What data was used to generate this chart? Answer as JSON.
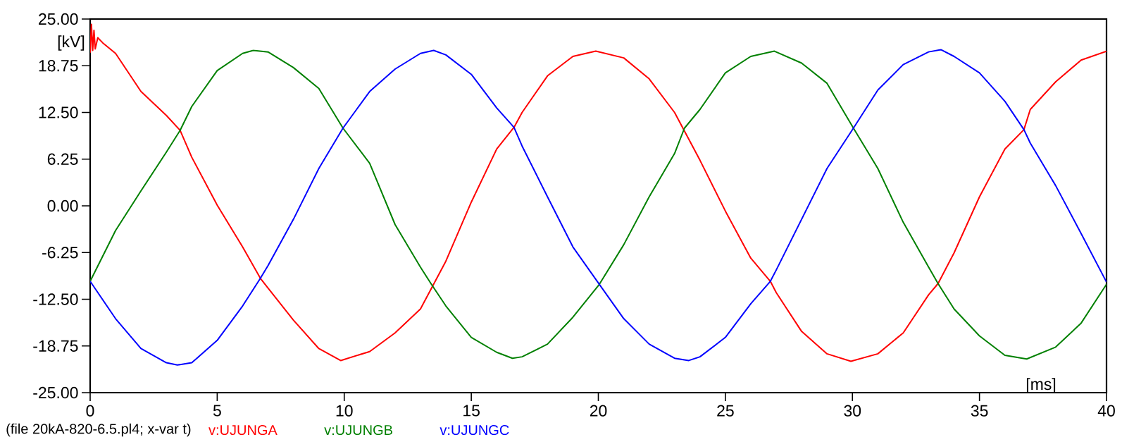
{
  "chart_data": {
    "type": "line",
    "xlabel": "[ms]",
    "ylabel": "[kV]",
    "annotations": [
      "(file 20kA-820-6.5.pl4; x-var t)"
    ],
    "xlim": [
      0,
      40
    ],
    "ylim": [
      -25,
      25
    ],
    "xticks": [
      0,
      5,
      10,
      15,
      20,
      25,
      30,
      35,
      40
    ],
    "yticks": [
      {
        "value": -25,
        "label": "-25.00"
      },
      {
        "value": -18.75,
        "label": "-18.75"
      },
      {
        "value": -12.5,
        "label": "-12.50"
      },
      {
        "value": -6.25,
        "label": "-6.25"
      },
      {
        "value": 0,
        "label": "0.00"
      },
      {
        "value": 6.25,
        "label": "6.25"
      },
      {
        "value": 12.5,
        "label": "12.50"
      },
      {
        "value": 18.75,
        "label": "18.75"
      },
      {
        "value": 25,
        "label": "25.00"
      }
    ],
    "grid": false,
    "legend": "bottom",
    "series": [
      {
        "name": "v:UJUNGA",
        "color": "#ff0000",
        "x": [
          0,
          0.05,
          0.1,
          0.15,
          0.2,
          0.3,
          0.5,
          1,
          2,
          3,
          3.54,
          4,
          5,
          6,
          6.7,
          7,
          8,
          9,
          9.86,
          11,
          12,
          13,
          14,
          15,
          16,
          16.68,
          17,
          18,
          19,
          19.9,
          21,
          22,
          23,
          24,
          25,
          26,
          26.77,
          27,
          28,
          29,
          29.94,
          31,
          32,
          33,
          33.37,
          34,
          35,
          36,
          36.75,
          37,
          38,
          39,
          40
        ],
        "values": [
          20.5,
          24.3,
          20.8,
          23.5,
          21.0,
          22.5,
          21.8,
          20.4,
          15.3,
          12.1,
          10.1,
          6.5,
          0.1,
          -5.5,
          -9.7,
          -11.0,
          -15.3,
          -19.1,
          -20.7,
          -19.5,
          -17.0,
          -13.8,
          -7.4,
          0.5,
          7.6,
          10.5,
          12.5,
          17.4,
          20.0,
          20.7,
          19.8,
          17.0,
          12.5,
          6.1,
          -0.7,
          -7.0,
          -10.1,
          -11.6,
          -16.8,
          -19.8,
          -20.8,
          -19.8,
          -17.0,
          -11.9,
          -10.4,
          -6.3,
          1.2,
          7.6,
          10.2,
          12.9,
          16.6,
          19.5,
          20.7
        ]
      },
      {
        "name": "v:UJUNGB",
        "color": "#008000",
        "x": [
          0,
          1,
          2,
          3,
          3.54,
          4,
          5,
          6,
          6.42,
          7,
          8,
          9,
          9.95,
          11,
          12,
          13,
          13.43,
          14,
          15,
          16,
          16.62,
          17,
          18,
          19,
          20.04,
          21,
          22,
          23,
          23.39,
          24,
          25,
          26,
          26.93,
          28,
          29,
          30.04,
          31,
          32,
          33,
          33.37,
          34,
          35,
          36,
          36.86,
          38,
          39,
          40
        ],
        "values": [
          -10.1,
          -3.3,
          2.0,
          7.2,
          10.1,
          13.3,
          18.1,
          20.4,
          20.8,
          20.6,
          18.5,
          15.7,
          10.4,
          5.7,
          -2.5,
          -8.2,
          -10.5,
          -13.4,
          -17.6,
          -19.6,
          -20.4,
          -20.2,
          -18.5,
          -14.9,
          -10.5,
          -5.2,
          1.2,
          7.0,
          10.4,
          12.9,
          17.8,
          20.0,
          20.7,
          19.1,
          16.4,
          10.4,
          5.0,
          -2.2,
          -8.2,
          -10.4,
          -13.8,
          -17.4,
          -20.0,
          -20.5,
          -18.9,
          -15.7,
          -10.5
        ]
      },
      {
        "name": "v:UJUNGC",
        "color": "#0000ff",
        "x": [
          0,
          1,
          2,
          3,
          3.43,
          4,
          5,
          6,
          6.7,
          7,
          8,
          9,
          9.95,
          11,
          12,
          13,
          13.52,
          14,
          15,
          16,
          16.68,
          17,
          18,
          19,
          20.04,
          21,
          22,
          23,
          23.56,
          24,
          25,
          26,
          26.77,
          27,
          28,
          29,
          30.04,
          31,
          32,
          33,
          33.48,
          34,
          35,
          36,
          36.75,
          37,
          38,
          39,
          40
        ],
        "values": [
          -10.1,
          -15.1,
          -19.1,
          -21.0,
          -21.3,
          -21.0,
          -18.0,
          -13.4,
          -9.7,
          -8.0,
          -1.8,
          5.0,
          10.4,
          15.3,
          18.3,
          20.4,
          20.8,
          20.2,
          17.6,
          13.1,
          10.5,
          8.0,
          1.2,
          -5.5,
          -10.5,
          -15.1,
          -18.5,
          -20.4,
          -20.7,
          -20.2,
          -17.6,
          -13.1,
          -10.1,
          -8.6,
          -1.8,
          5.0,
          10.4,
          15.5,
          18.9,
          20.6,
          20.9,
          20.0,
          17.8,
          14.0,
          10.2,
          8.4,
          2.7,
          -3.7,
          -10.2
        ]
      }
    ]
  }
}
